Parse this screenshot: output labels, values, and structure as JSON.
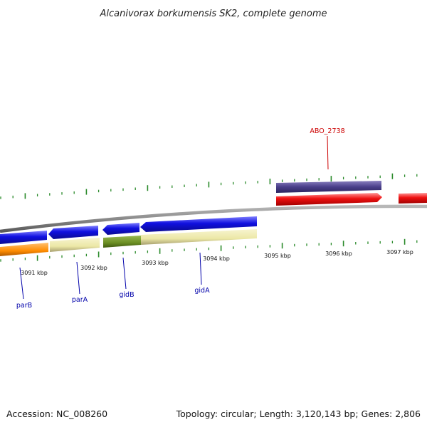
{
  "title": "Alcanivorax borkumensis SK2, complete genome",
  "accession": "Accession: NC_008260",
  "summary": "Topology: circular; Length: 3,120,143 bp; Genes: 2,806",
  "colors": {
    "backbone": "#8a8a8a",
    "tick": "#2a8a2a",
    "forward_label": "#cc0000",
    "reverse_label": "#0000aa",
    "gene_blue": "#1010e0",
    "gene_red": "#ee1010",
    "gene_purple": "#4a3f8a",
    "feature_orange": "#ff8c00",
    "feature_khaki": "#ece8a6",
    "feature_olive": "#6b8e23"
  },
  "scale_labels": [
    "3091 kbp",
    "3092 kbp",
    "3093 kbp",
    "3094 kbp",
    "3095 kbp",
    "3096 kbp",
    "3097 kbp"
  ],
  "gene_labels": {
    "parB": "parB",
    "parA": "parA",
    "gidB": "gidB",
    "gidA": "gidA",
    "abo": "ABO_2738"
  }
}
